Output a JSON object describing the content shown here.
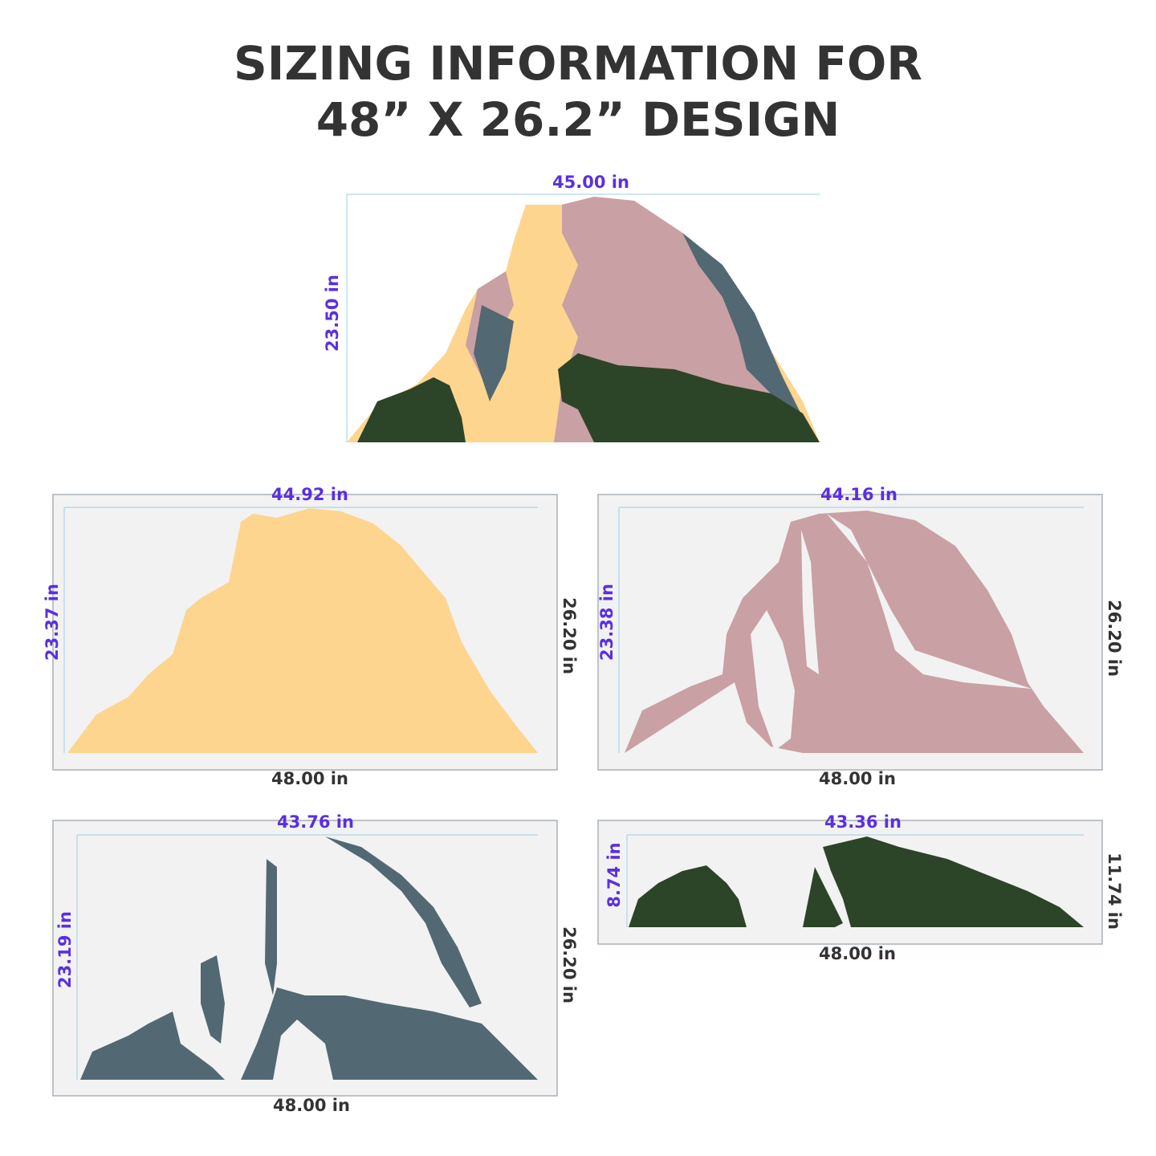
{
  "header": {
    "title": [
      "SIZING INFORMATION FOR",
      "48” X 26.2” DESIGN"
    ]
  },
  "composite": {
    "width_label": "45.00  in",
    "height_label": "23.50  in"
  },
  "panels": [
    {
      "width_label": "44.92  in",
      "height_label": "23.37  in",
      "sheet_width_label": "48.00  in",
      "sheet_height_label": "26.20  in"
    },
    {
      "width_label": "44.16  in",
      "height_label": "23.38  in",
      "sheet_width_label": "48.00  in",
      "sheet_height_label": "26.20  in"
    },
    {
      "width_label": "43.76  in",
      "height_label": "23.19  in",
      "sheet_width_label": "48.00  in",
      "sheet_height_label": "26.20  in"
    },
    {
      "width_label": "43.36  in",
      "height_label": "8.74  in",
      "sheet_width_label": "48.00  in",
      "sheet_height_label": "11.74  in"
    }
  ]
}
